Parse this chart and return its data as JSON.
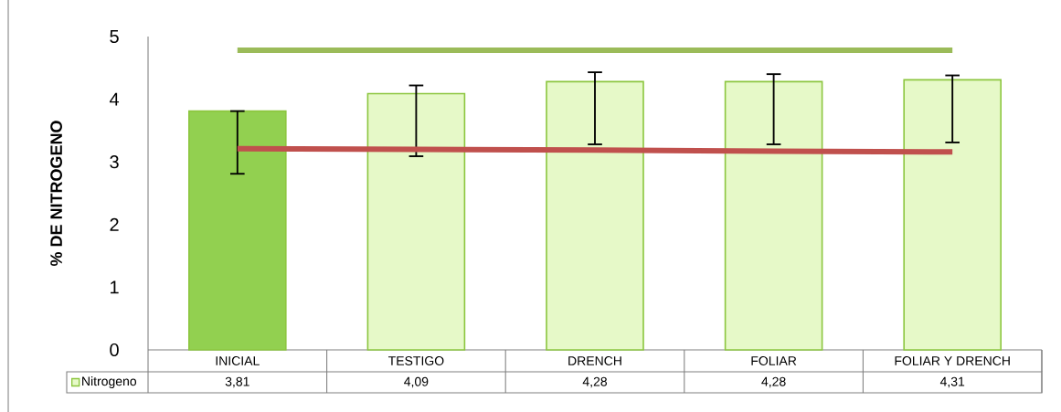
{
  "chart_data": {
    "type": "bar",
    "ylabel": "% DE NITROGENO",
    "categories": [
      "INICIAL",
      "TESTIGO",
      "DRENCH",
      "FOLIAR",
      "FOLIAR Y DRENCH"
    ],
    "series": [
      {
        "name": "Nitrogeno",
        "values": [
          3.81,
          4.09,
          4.28,
          4.28,
          4.31
        ],
        "colors": [
          "#92d050",
          "#e6f9c8",
          "#e6f9c8",
          "#e6f9c8",
          "#e6f9c8"
        ],
        "errors": [
          [
            2.81,
            3.81
          ],
          [
            3.09,
            4.22
          ],
          [
            3.28,
            4.43
          ],
          [
            3.28,
            4.4
          ],
          [
            3.31,
            4.38
          ]
        ],
        "value_labels": [
          "3,81",
          "4,09",
          "4,28",
          "4,28",
          "4,31"
        ]
      },
      {
        "type": "line",
        "color": "#9bbb59",
        "values": [
          4.78,
          4.78,
          4.78,
          4.78,
          4.78
        ]
      },
      {
        "type": "line",
        "color": "#c0504d",
        "values": [
          3.21,
          3.2,
          3.19,
          3.17,
          3.16
        ]
      }
    ],
    "ylim": [
      0,
      5
    ],
    "yticks": [
      0,
      1,
      2,
      3,
      4,
      5
    ],
    "grid": false,
    "legend": "bottom"
  }
}
